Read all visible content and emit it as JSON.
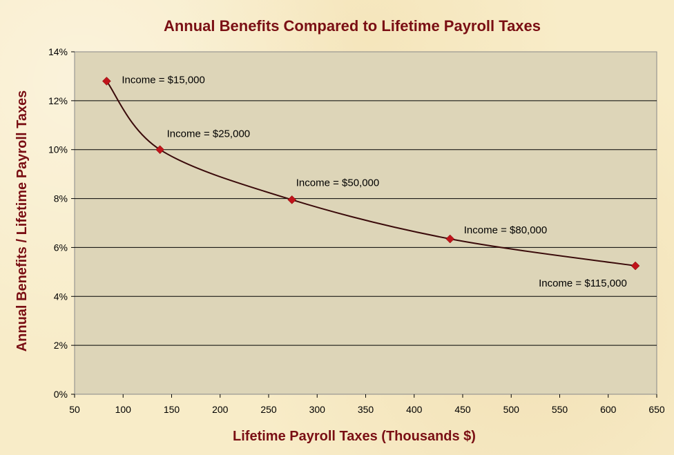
{
  "chart_data": {
    "type": "line",
    "title": "Annual Benefits Compared to Lifetime Payroll Taxes",
    "xlabel": "Lifetime Payroll Taxes (Thousands $)",
    "ylabel": "Annual Benefits  /  Lifetime Payroll Taxes",
    "xlim": [
      50,
      650
    ],
    "ylim": [
      0,
      14
    ],
    "x_ticks": [
      50,
      100,
      150,
      200,
      250,
      300,
      350,
      400,
      450,
      500,
      550,
      600,
      650
    ],
    "y_ticks": [
      0,
      2,
      4,
      6,
      8,
      10,
      12,
      14
    ],
    "y_tick_labels": [
      "0%",
      "2%",
      "4%",
      "6%",
      "8%",
      "10%",
      "12%",
      "14%"
    ],
    "grid": "horizontal",
    "plot_background": "#ddd5b8",
    "line_color": "#3a0a0a",
    "marker_color": "#c0141b",
    "title_color": "#7a0f14",
    "series": [
      {
        "points": [
          {
            "x": 83,
            "y": 12.8,
            "label": "Income = $15,000"
          },
          {
            "x": 138,
            "y": 10.0,
            "label": "Income = $25,000"
          },
          {
            "x": 274,
            "y": 7.95,
            "label": "Income = $50,000"
          },
          {
            "x": 437,
            "y": 6.35,
            "label": "Income = $80,000"
          },
          {
            "x": 628,
            "y": 5.25,
            "label": "Income = $115,000"
          }
        ]
      }
    ]
  }
}
